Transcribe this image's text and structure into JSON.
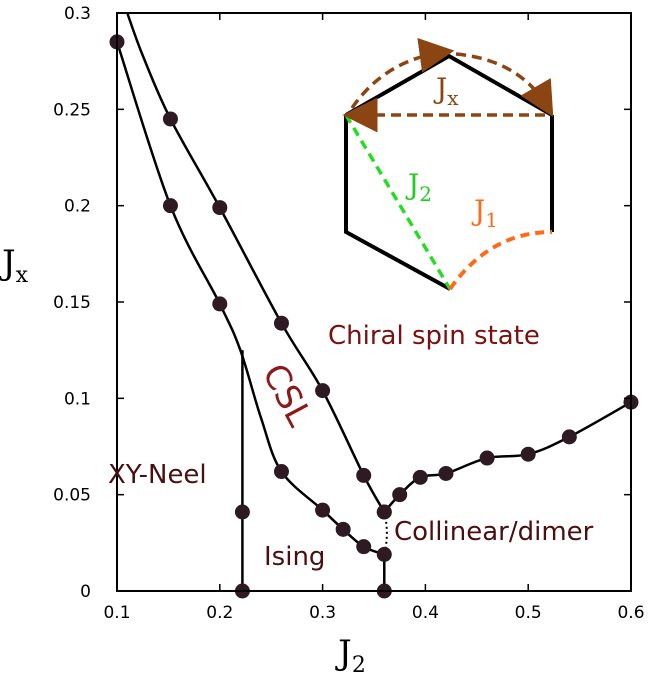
{
  "chart_data": {
    "type": "scatter",
    "title": "",
    "xlabel": "J",
    "xlabel_sub": "2",
    "ylabel": "J",
    "ylabel_sub": "x",
    "xlim": [
      0.1,
      0.6
    ],
    "ylim": [
      0,
      0.3
    ],
    "x_ticks": [
      0.1,
      0.2,
      0.3,
      0.4,
      0.5,
      0.6
    ],
    "x_tick_labels": [
      "0.1",
      "0.2",
      "0.3",
      "0.4",
      "0.5",
      "0.6"
    ],
    "y_ticks": [
      0,
      0.05,
      0.1,
      0.15,
      0.2,
      0.25,
      0.3
    ],
    "y_tick_labels": [
      "0",
      "0.05",
      "0.1",
      "0.15",
      "0.2",
      "0.25",
      "0.3"
    ],
    "grid": false,
    "series": [
      {
        "points": [
          [
            0.1,
            0.285
          ],
          [
            0.152,
            0.245
          ],
          [
            0.2,
            0.199
          ],
          [
            0.26,
            0.139
          ],
          [
            0.3,
            0.104
          ],
          [
            0.34,
            0.06
          ],
          [
            0.36,
            0.041
          ]
        ],
        "curve": [
          [
            0.11,
            0.3
          ],
          [
            0.125,
            0.278
          ],
          [
            0.152,
            0.245
          ],
          [
            0.2,
            0.199
          ],
          [
            0.26,
            0.139
          ],
          [
            0.3,
            0.104
          ],
          [
            0.34,
            0.06
          ],
          [
            0.36,
            0.041
          ]
        ]
      },
      {
        "points": [
          [
            0.152,
            0.2
          ],
          [
            0.2,
            0.149
          ],
          [
            0.26,
            0.062
          ],
          [
            0.3,
            0.042
          ],
          [
            0.32,
            0.032
          ],
          [
            0.34,
            0.023
          ],
          [
            0.36,
            0.019
          ]
        ],
        "curve": [
          [
            0.1,
            0.285
          ],
          [
            0.152,
            0.2
          ],
          [
            0.2,
            0.149
          ],
          [
            0.22,
            0.125
          ],
          [
            0.24,
            0.09
          ],
          [
            0.26,
            0.062
          ],
          [
            0.3,
            0.042
          ],
          [
            0.32,
            0.032
          ],
          [
            0.34,
            0.023
          ],
          [
            0.36,
            0.019
          ]
        ]
      },
      {
        "points": [
          [
            0.36,
            0.041
          ],
          [
            0.375,
            0.05
          ],
          [
            0.395,
            0.059
          ],
          [
            0.42,
            0.061
          ],
          [
            0.46,
            0.069
          ],
          [
            0.5,
            0.071
          ],
          [
            0.54,
            0.08
          ],
          [
            0.6,
            0.098
          ]
        ],
        "curve": [
          [
            0.36,
            0.041
          ],
          [
            0.375,
            0.05
          ],
          [
            0.395,
            0.059
          ],
          [
            0.42,
            0.061
          ],
          [
            0.46,
            0.069
          ],
          [
            0.5,
            0.071
          ],
          [
            0.54,
            0.08
          ],
          [
            0.6,
            0.098
          ]
        ]
      },
      {
        "points": [
          [
            0.222,
            0.041
          ],
          [
            0.222,
            0
          ],
          [
            0.36,
            0
          ]
        ],
        "lines": [
          [
            [
              0.222,
              0.125
            ],
            [
              0.222,
              0
            ]
          ],
          [
            [
              0.36,
              0.019
            ],
            [
              0.36,
              0
            ]
          ]
        ]
      }
    ],
    "dotted_line": [
      [
        0.36,
        0.041
      ],
      [
        0.365,
        0.03
      ],
      [
        0.36,
        0.019
      ]
    ],
    "marker_color": "#2e1a22",
    "line_color": "#000000",
    "annotations": [
      {
        "id": "chiral",
        "text": "Chiral spin state",
        "x": 0.3,
        "y": 0.133,
        "color": "#7a1010"
      },
      {
        "id": "csl",
        "text": "CSL",
        "x": 0.26,
        "y": 0.078,
        "color": "#8b1a1a",
        "rotate": 62
      },
      {
        "id": "xyneel",
        "text": "XY-Neel",
        "x": 0.1,
        "y": 0.052,
        "color": "#4a0f0f"
      },
      {
        "id": "ising",
        "text": "Ising",
        "x": 0.245,
        "y": 0.015,
        "color": "#4a0f0f"
      },
      {
        "id": "collinear",
        "text": "Collinear/dimer",
        "x": 0.37,
        "y": 0.025,
        "color": "#4a0f0f"
      }
    ],
    "inset": {
      "labels": [
        {
          "base": "J",
          "sub": "x",
          "color": "#8b4513"
        },
        {
          "base": "J",
          "sub": "2",
          "color": "#22cc22"
        },
        {
          "base": "J",
          "sub": "1",
          "color": "#ff6a1a"
        }
      ],
      "colors": {
        "jx": "#8b4513",
        "j2": "#22dd22",
        "j1": "#ff6a1a",
        "hex": "#000000"
      }
    }
  }
}
